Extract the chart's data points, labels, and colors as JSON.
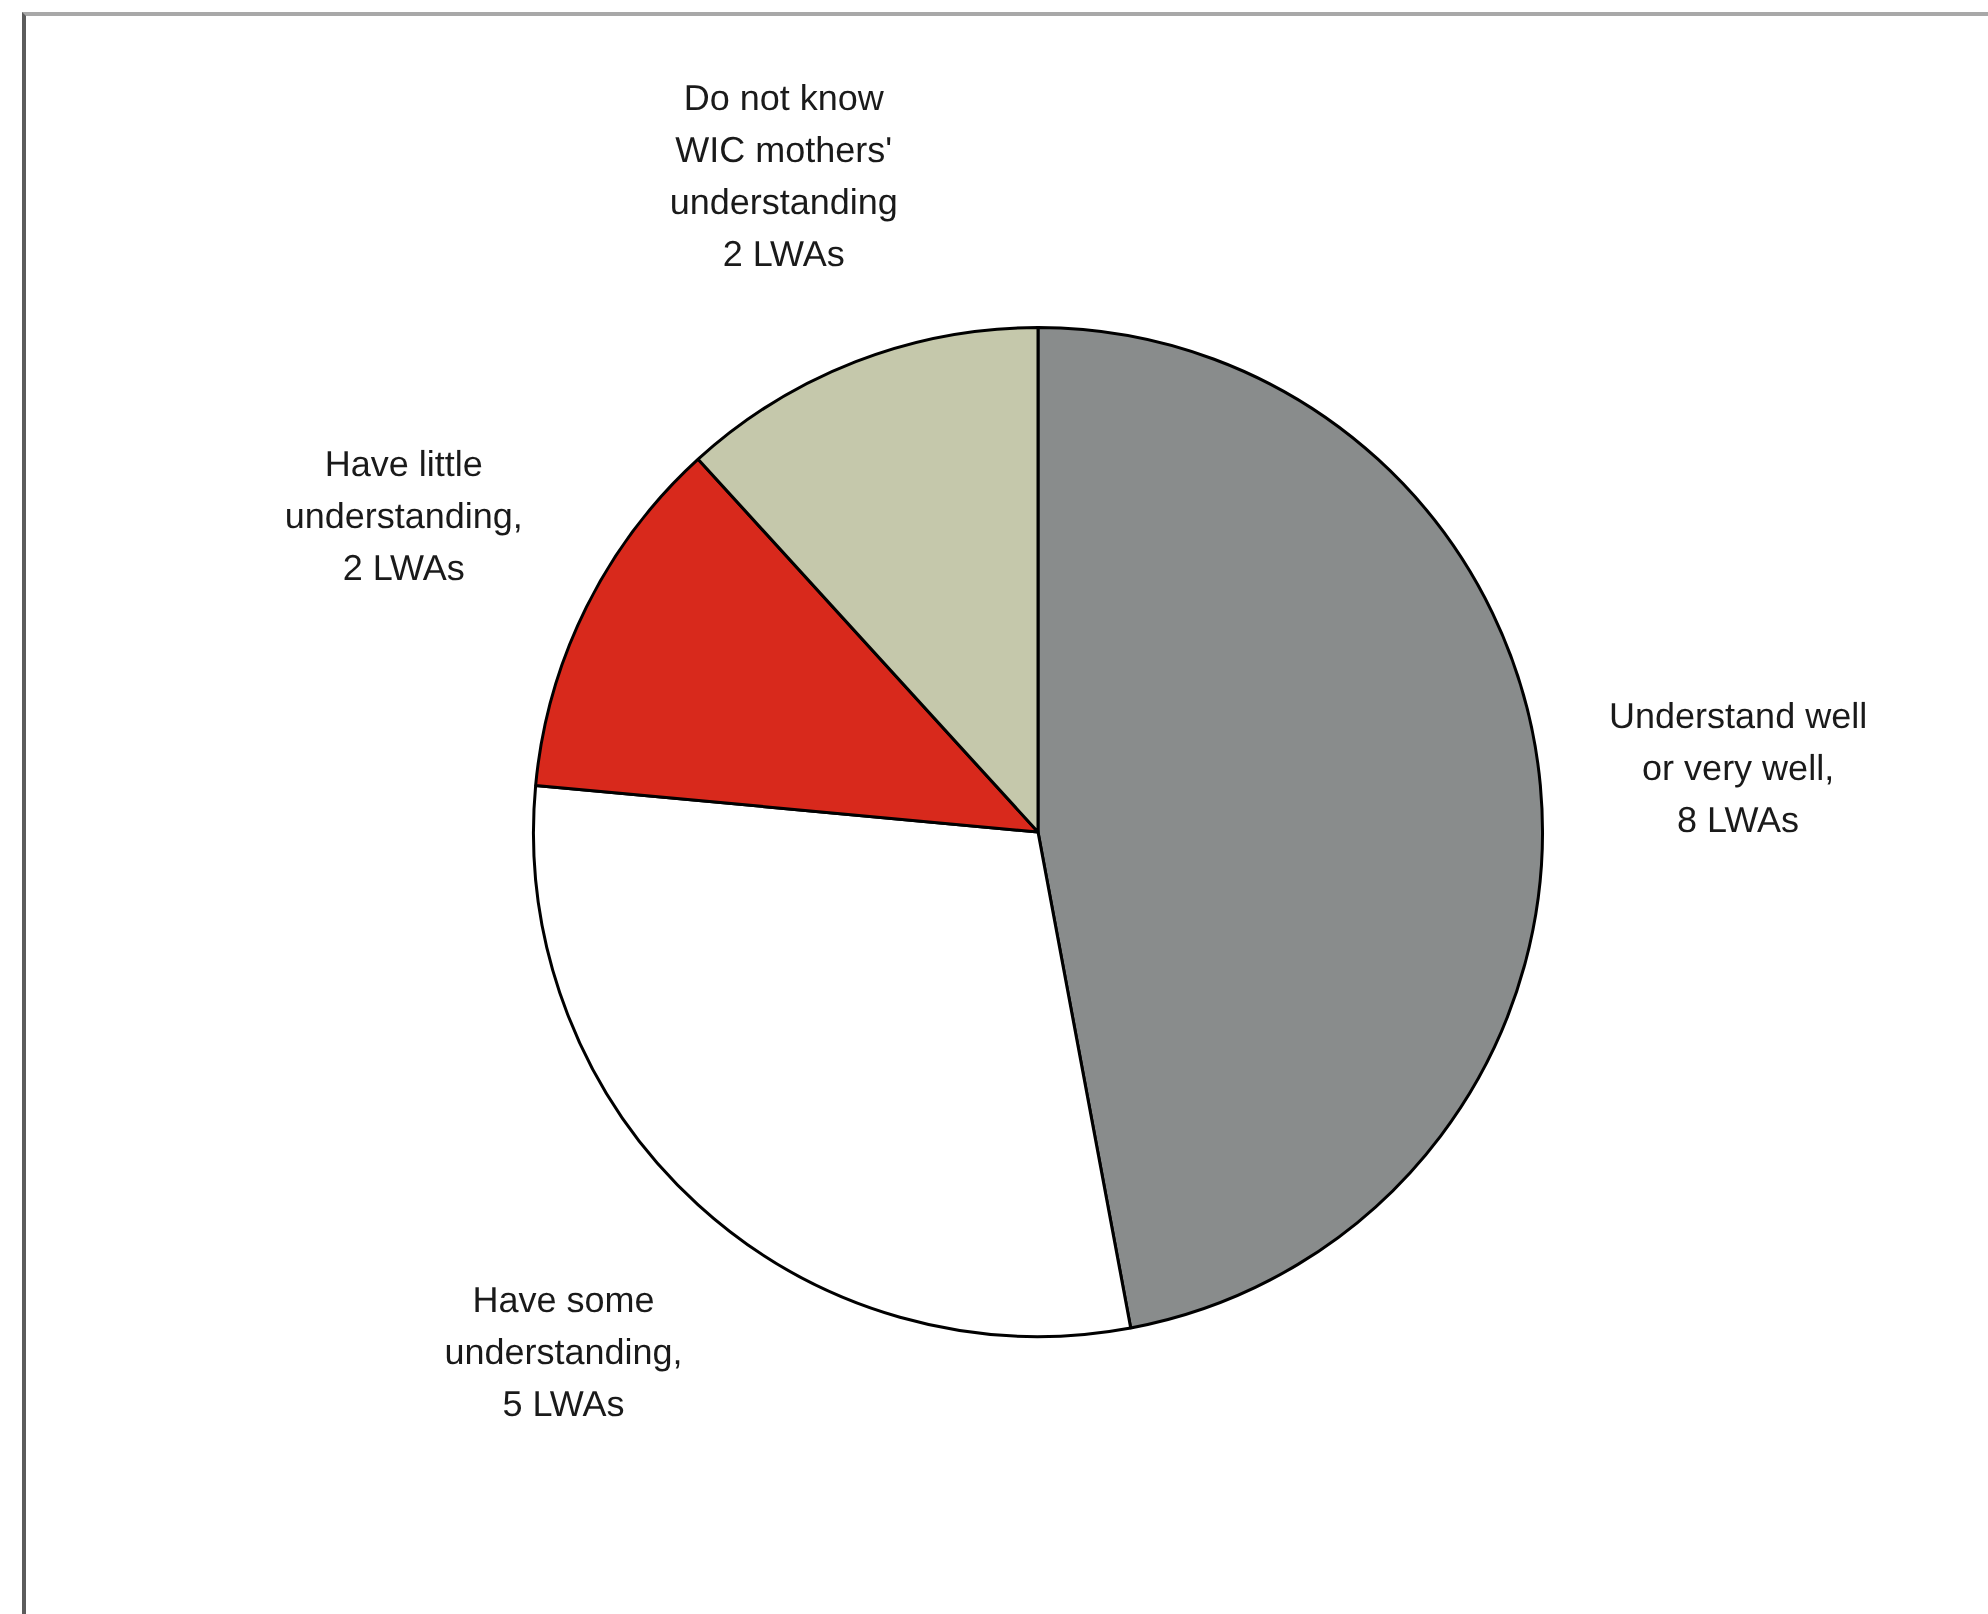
{
  "chart_data": {
    "type": "pie",
    "categories": [
      "Understand well or very well, 8 LWAs",
      "Have some understanding, 5 LWAs",
      "Have little understanding, 2 LWAs",
      "Do not know WIC mothers' understanding 2 LWAs"
    ],
    "values": [
      8,
      5,
      2,
      2
    ],
    "colors": [
      "#898c8c",
      "#ffffff",
      "#d8291c",
      "#c5c8ab"
    ]
  }
}
